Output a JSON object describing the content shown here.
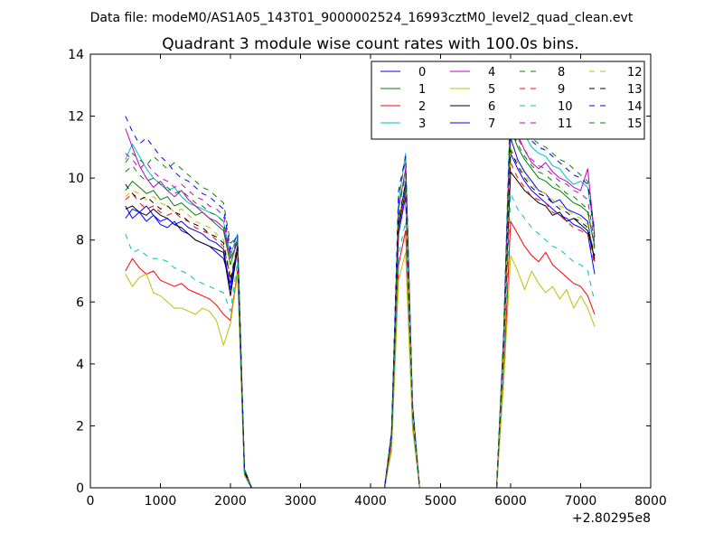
{
  "suptitle": "Data file: modeM0/AS1A05_143T01_9000002524_16993cztM0_level2_quad_clean.evt",
  "chart_data": {
    "type": "line",
    "title": "Quadrant 3 module wise count rates with 100.0s bins.",
    "xlabel": "",
    "ylabel": "",
    "xlim": [
      0,
      8000
    ],
    "ylim": [
      0,
      14
    ],
    "x_offset_label": "+2.80295e8",
    "x_ticks": [
      0,
      1000,
      2000,
      3000,
      4000,
      5000,
      6000,
      7000,
      8000
    ],
    "x_tick_labels": [
      "0",
      "1000",
      "2000",
      "3000",
      "4000",
      "5000",
      "6000",
      "7000",
      "8000"
    ],
    "y_ticks": [
      0,
      2,
      4,
      6,
      8,
      10,
      12,
      14
    ],
    "y_tick_labels": [
      "0",
      "2",
      "4",
      "6",
      "8",
      "10",
      "12",
      "14"
    ],
    "grid": false,
    "legend_position": "top-right",
    "legend_columns": 4,
    "x": [
      500,
      600,
      700,
      800,
      900,
      1000,
      1100,
      1200,
      1300,
      1400,
      1500,
      1600,
      1700,
      1800,
      1900,
      2000,
      2100,
      2200,
      2300,
      4200,
      4300,
      4400,
      4500,
      4600,
      4700,
      5800,
      5900,
      6000,
      6100,
      6200,
      6300,
      6400,
      6500,
      6600,
      6700,
      6800,
      6900,
      7000,
      7100,
      7200
    ],
    "series": [
      {
        "name": "0",
        "color": "#0000ff",
        "dash": "solid",
        "values": [
          9.1,
          8.7,
          8.9,
          8.6,
          8.8,
          8.5,
          8.4,
          8.6,
          8.3,
          8.2,
          8.0,
          7.9,
          7.8,
          7.6,
          7.4,
          6.6,
          7.8,
          0.5,
          0.0,
          0.0,
          1.7,
          8.2,
          9.4,
          2.4,
          0.0,
          0.0,
          4.4,
          11.3,
          10.6,
          10.2,
          9.9,
          9.6,
          9.5,
          9.2,
          9.3,
          9.0,
          8.9,
          8.8,
          8.6,
          7.3
        ]
      },
      {
        "name": "1",
        "color": "#008000",
        "dash": "solid",
        "values": [
          9.6,
          9.9,
          9.7,
          9.5,
          9.6,
          9.3,
          9.4,
          9.1,
          9.2,
          9.0,
          8.8,
          8.9,
          8.7,
          8.5,
          8.3,
          7.2,
          8.0,
          0.6,
          0.0,
          0.0,
          1.6,
          8.5,
          9.9,
          2.5,
          0.0,
          0.0,
          4.6,
          11.6,
          11.0,
          10.6,
          10.3,
          10.0,
          9.9,
          9.7,
          9.6,
          9.4,
          9.2,
          9.1,
          8.9,
          7.8
        ]
      },
      {
        "name": "2",
        "color": "#ff0000",
        "dash": "solid",
        "values": [
          7.0,
          7.4,
          7.1,
          6.9,
          7.0,
          6.7,
          6.6,
          6.5,
          6.6,
          6.4,
          6.3,
          6.2,
          6.1,
          5.9,
          5.6,
          5.4,
          7.0,
          0.4,
          0.0,
          0.0,
          1.3,
          7.2,
          8.3,
          2.0,
          0.0,
          0.0,
          3.6,
          8.6,
          8.2,
          7.8,
          7.5,
          7.3,
          7.6,
          7.2,
          7.0,
          6.8,
          6.6,
          6.5,
          6.2,
          5.6
        ]
      },
      {
        "name": "3",
        "color": "#00bfbf",
        "dash": "solid",
        "values": [
          10.6,
          11.1,
          10.7,
          10.3,
          10.0,
          9.8,
          9.6,
          9.7,
          9.4,
          9.2,
          9.1,
          9.0,
          8.9,
          8.8,
          8.6,
          7.5,
          8.2,
          0.6,
          0.0,
          0.0,
          1.8,
          9.2,
          10.8,
          2.7,
          0.0,
          0.0,
          5.0,
          12.5,
          11.9,
          11.4,
          11.0,
          10.8,
          10.7,
          10.4,
          10.3,
          10.0,
          9.8,
          9.9,
          9.7,
          8.2
        ]
      },
      {
        "name": "4",
        "color": "#bf00bf",
        "dash": "solid",
        "values": [
          11.6,
          11.0,
          10.4,
          10.0,
          9.7,
          9.9,
          9.6,
          9.4,
          9.6,
          9.3,
          9.1,
          8.9,
          8.7,
          8.6,
          8.4,
          7.4,
          7.9,
          0.6,
          0.0,
          0.0,
          1.8,
          9.0,
          10.3,
          2.6,
          0.0,
          0.0,
          4.8,
          12.0,
          11.4,
          10.9,
          10.5,
          10.3,
          10.5,
          10.2,
          10.0,
          9.9,
          9.7,
          9.6,
          10.3,
          8.1
        ]
      },
      {
        "name": "5",
        "color": "#bfbf00",
        "dash": "solid",
        "values": [
          6.9,
          6.5,
          6.8,
          6.9,
          6.3,
          6.2,
          6.0,
          5.8,
          5.8,
          5.7,
          5.6,
          5.8,
          5.7,
          5.4,
          4.6,
          5.3,
          6.9,
          0.4,
          0.0,
          0.0,
          1.2,
          6.7,
          7.6,
          1.9,
          0.0,
          0.0,
          3.4,
          7.5,
          7.0,
          6.4,
          7.0,
          6.6,
          6.3,
          6.5,
          6.1,
          6.4,
          5.8,
          6.2,
          5.8,
          5.2
        ]
      },
      {
        "name": "6",
        "color": "#000000",
        "dash": "solid",
        "values": [
          9.0,
          9.1,
          8.9,
          8.8,
          9.0,
          8.8,
          8.7,
          8.5,
          8.4,
          8.2,
          8.0,
          7.9,
          7.8,
          7.7,
          7.6,
          6.2,
          7.7,
          0.5,
          0.0,
          0.0,
          1.7,
          8.4,
          9.6,
          2.4,
          0.0,
          0.0,
          4.5,
          10.2,
          9.9,
          9.6,
          9.4,
          9.2,
          9.1,
          8.8,
          8.9,
          8.6,
          8.7,
          8.5,
          8.3,
          7.4
        ]
      },
      {
        "name": "7",
        "color": "#0000ff",
        "dash": "solid",
        "values": [
          8.7,
          9.0,
          8.9,
          9.1,
          8.8,
          8.6,
          8.7,
          8.5,
          8.6,
          8.4,
          8.3,
          8.2,
          8.0,
          7.9,
          7.7,
          6.4,
          7.8,
          0.5,
          0.0,
          0.0,
          1.7,
          8.5,
          9.8,
          2.5,
          0.0,
          0.0,
          4.6,
          10.8,
          10.3,
          9.9,
          9.6,
          9.4,
          9.2,
          9.0,
          8.8,
          8.7,
          8.5,
          8.4,
          8.2,
          6.9
        ]
      },
      {
        "name": "8",
        "color": "#008000",
        "dash": "dashed",
        "values": [
          10.5,
          10.8,
          10.6,
          10.4,
          10.7,
          10.5,
          10.3,
          10.5,
          10.3,
          10.1,
          9.9,
          9.7,
          9.6,
          9.4,
          9.2,
          7.9,
          8.1,
          0.6,
          0.0,
          0.0,
          1.8,
          9.4,
          10.6,
          2.7,
          0.0,
          0.0,
          5.0,
          12.8,
          12.1,
          11.6,
          11.3,
          11.1,
          11.0,
          10.8,
          10.6,
          10.5,
          10.3,
          10.1,
          9.9,
          8.0
        ]
      },
      {
        "name": "9",
        "color": "#ff0000",
        "dash": "dashed",
        "values": [
          9.3,
          9.5,
          9.2,
          9.0,
          9.1,
          8.9,
          8.8,
          8.9,
          8.7,
          8.6,
          8.4,
          8.3,
          8.2,
          8.0,
          7.8,
          6.8,
          7.7,
          0.5,
          0.0,
          0.0,
          1.6,
          8.6,
          9.5,
          2.3,
          0.0,
          0.0,
          4.4,
          10.5,
          10.0,
          9.7,
          9.4,
          9.3,
          9.2,
          8.9,
          8.8,
          8.6,
          8.4,
          8.3,
          8.2,
          7.2
        ]
      },
      {
        "name": "10",
        "color": "#00bfbf",
        "dash": "dashed",
        "values": [
          8.2,
          7.6,
          7.7,
          7.5,
          7.4,
          7.4,
          7.3,
          7.1,
          7.0,
          6.9,
          6.7,
          6.6,
          6.5,
          6.4,
          6.3,
          5.7,
          7.3,
          0.4,
          0.0,
          0.0,
          1.4,
          7.5,
          8.6,
          2.1,
          0.0,
          0.0,
          3.9,
          9.5,
          9.0,
          8.7,
          8.4,
          8.2,
          8.0,
          7.8,
          7.7,
          7.5,
          7.3,
          7.2,
          7.0,
          6.0
        ]
      },
      {
        "name": "11",
        "color": "#bf00bf",
        "dash": "dashed",
        "values": [
          10.8,
          10.6,
          10.3,
          10.5,
          10.2,
          10.0,
          9.9,
          9.7,
          9.8,
          9.6,
          9.4,
          9.3,
          9.1,
          9.0,
          8.8,
          7.6,
          8.0,
          0.6,
          0.0,
          0.0,
          1.7,
          9.1,
          10.2,
          2.6,
          0.0,
          0.0,
          4.8,
          11.8,
          11.3,
          10.9,
          10.6,
          10.4,
          10.3,
          10.1,
          9.9,
          9.8,
          9.6,
          9.5,
          9.3,
          7.9
        ]
      },
      {
        "name": "12",
        "color": "#bfbf00",
        "dash": "dashed",
        "values": [
          9.4,
          9.6,
          9.5,
          9.3,
          9.4,
          9.2,
          9.1,
          8.9,
          9.0,
          8.8,
          8.6,
          8.5,
          8.4,
          8.2,
          8.0,
          6.9,
          7.8,
          0.5,
          0.0,
          0.0,
          1.6,
          8.6,
          9.7,
          2.4,
          0.0,
          0.0,
          4.5,
          11.0,
          10.5,
          10.1,
          9.8,
          9.6,
          9.5,
          9.3,
          9.1,
          9.0,
          8.8,
          8.7,
          8.5,
          7.5
        ]
      },
      {
        "name": "13",
        "color": "#000000",
        "dash": "dashed",
        "values": [
          9.8,
          9.5,
          9.3,
          9.4,
          9.2,
          9.0,
          9.1,
          8.9,
          8.8,
          8.6,
          8.5,
          8.4,
          8.2,
          8.1,
          7.9,
          6.7,
          7.8,
          0.5,
          0.0,
          0.0,
          1.7,
          8.7,
          9.8,
          2.5,
          0.0,
          0.0,
          4.6,
          10.9,
          10.4,
          10.0,
          9.7,
          9.5,
          9.4,
          9.2,
          9.0,
          8.9,
          8.7,
          8.6,
          8.4,
          7.5
        ]
      },
      {
        "name": "14",
        "color": "#0000ff",
        "dash": "dashed",
        "values": [
          12.0,
          11.5,
          11.1,
          11.3,
          11.0,
          10.7,
          10.5,
          10.2,
          10.0,
          9.9,
          9.7,
          9.5,
          9.4,
          9.2,
          9.0,
          7.7,
          8.2,
          0.6,
          0.0,
          0.0,
          1.8,
          9.6,
          10.7,
          2.7,
          0.0,
          0.0,
          5.0,
          12.3,
          11.9,
          11.5,
          11.2,
          11.0,
          10.9,
          10.7,
          10.5,
          10.3,
          10.1,
          10.0,
          9.8,
          8.3
        ]
      },
      {
        "name": "15",
        "color": "#008000",
        "dash": "dashed",
        "values": [
          10.2,
          10.4,
          10.1,
          9.9,
          10.0,
          9.8,
          9.7,
          9.5,
          9.6,
          9.4,
          9.2,
          9.1,
          8.9,
          8.8,
          8.6,
          7.4,
          8.0,
          0.6,
          0.0,
          0.0,
          1.7,
          9.0,
          10.1,
          2.5,
          0.0,
          0.0,
          4.7,
          11.6,
          11.1,
          10.7,
          10.4,
          10.2,
          10.1,
          9.9,
          9.7,
          9.5,
          9.4,
          9.2,
          9.0,
          7.7
        ]
      }
    ]
  }
}
